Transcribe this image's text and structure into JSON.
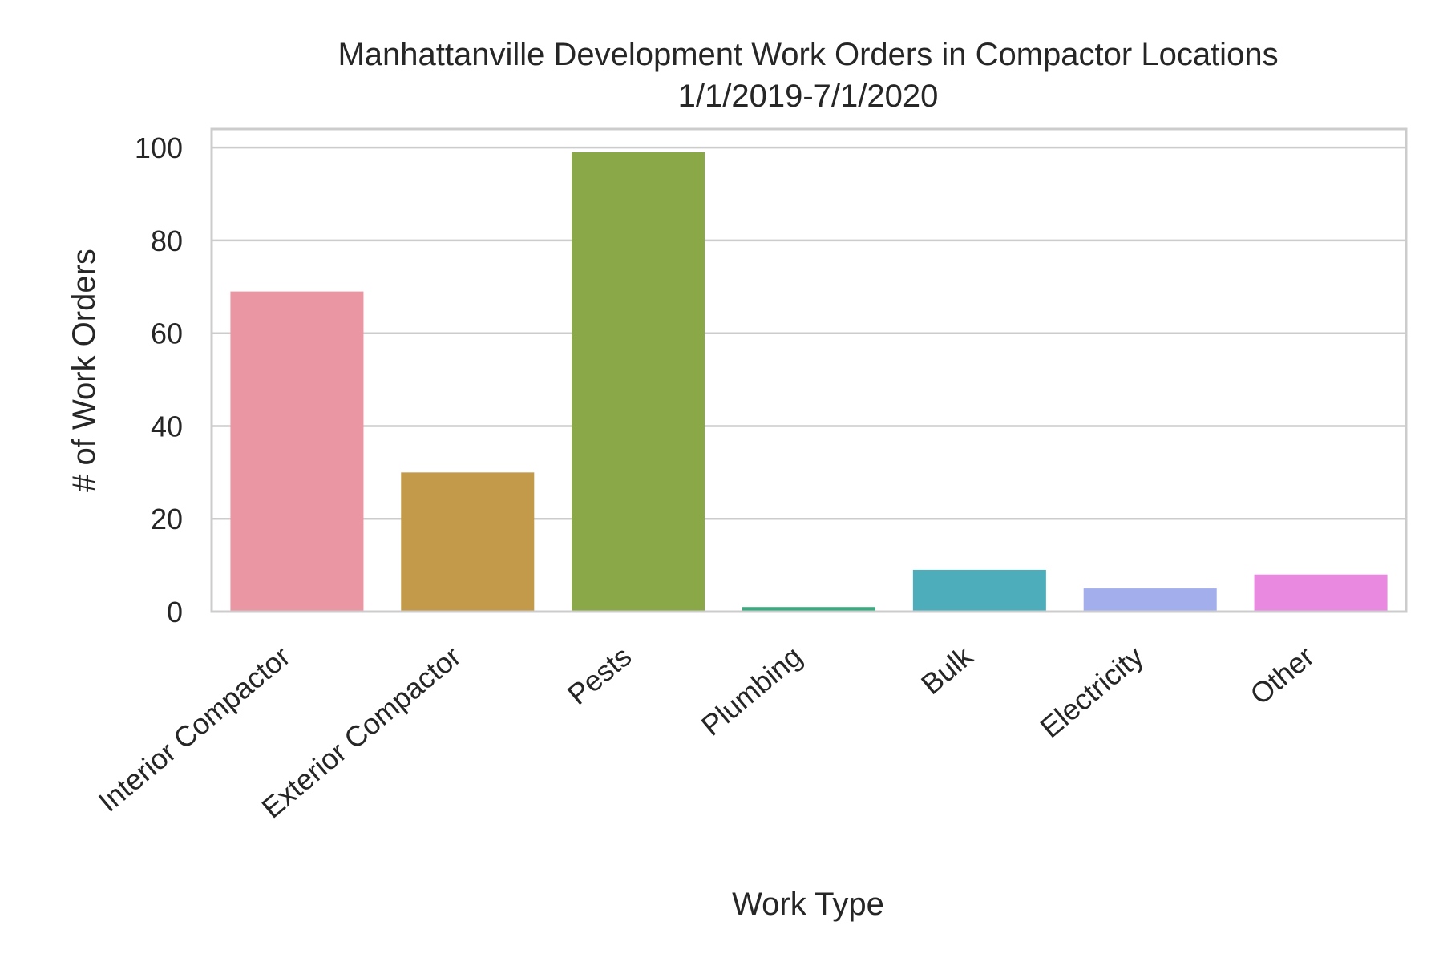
{
  "chart_data": {
    "type": "bar",
    "title": "Manhattanville Development Work Orders in Compactor Locations",
    "subtitle": "1/1/2019-7/1/2020",
    "xlabel": "Work Type",
    "ylabel": "# of Work Orders",
    "categories": [
      "Interior Compactor",
      "Exterior Compactor",
      "Pests",
      "Plumbing",
      "Bulk",
      "Electricity",
      "Other"
    ],
    "values": [
      69,
      30,
      99,
      1,
      9,
      5,
      8
    ],
    "colors": [
      "#ea96a3",
      "#c3994a",
      "#8aa847",
      "#3da980",
      "#4ead bb",
      "#a3afec",
      "#e98ae0"
    ],
    "ylim": [
      0,
      104
    ],
    "yticks": [
      0,
      20,
      40,
      60,
      80,
      100
    ],
    "grid": true,
    "grid_axis": "y",
    "background": "#ffffff",
    "grid_color": "#cccccc"
  }
}
